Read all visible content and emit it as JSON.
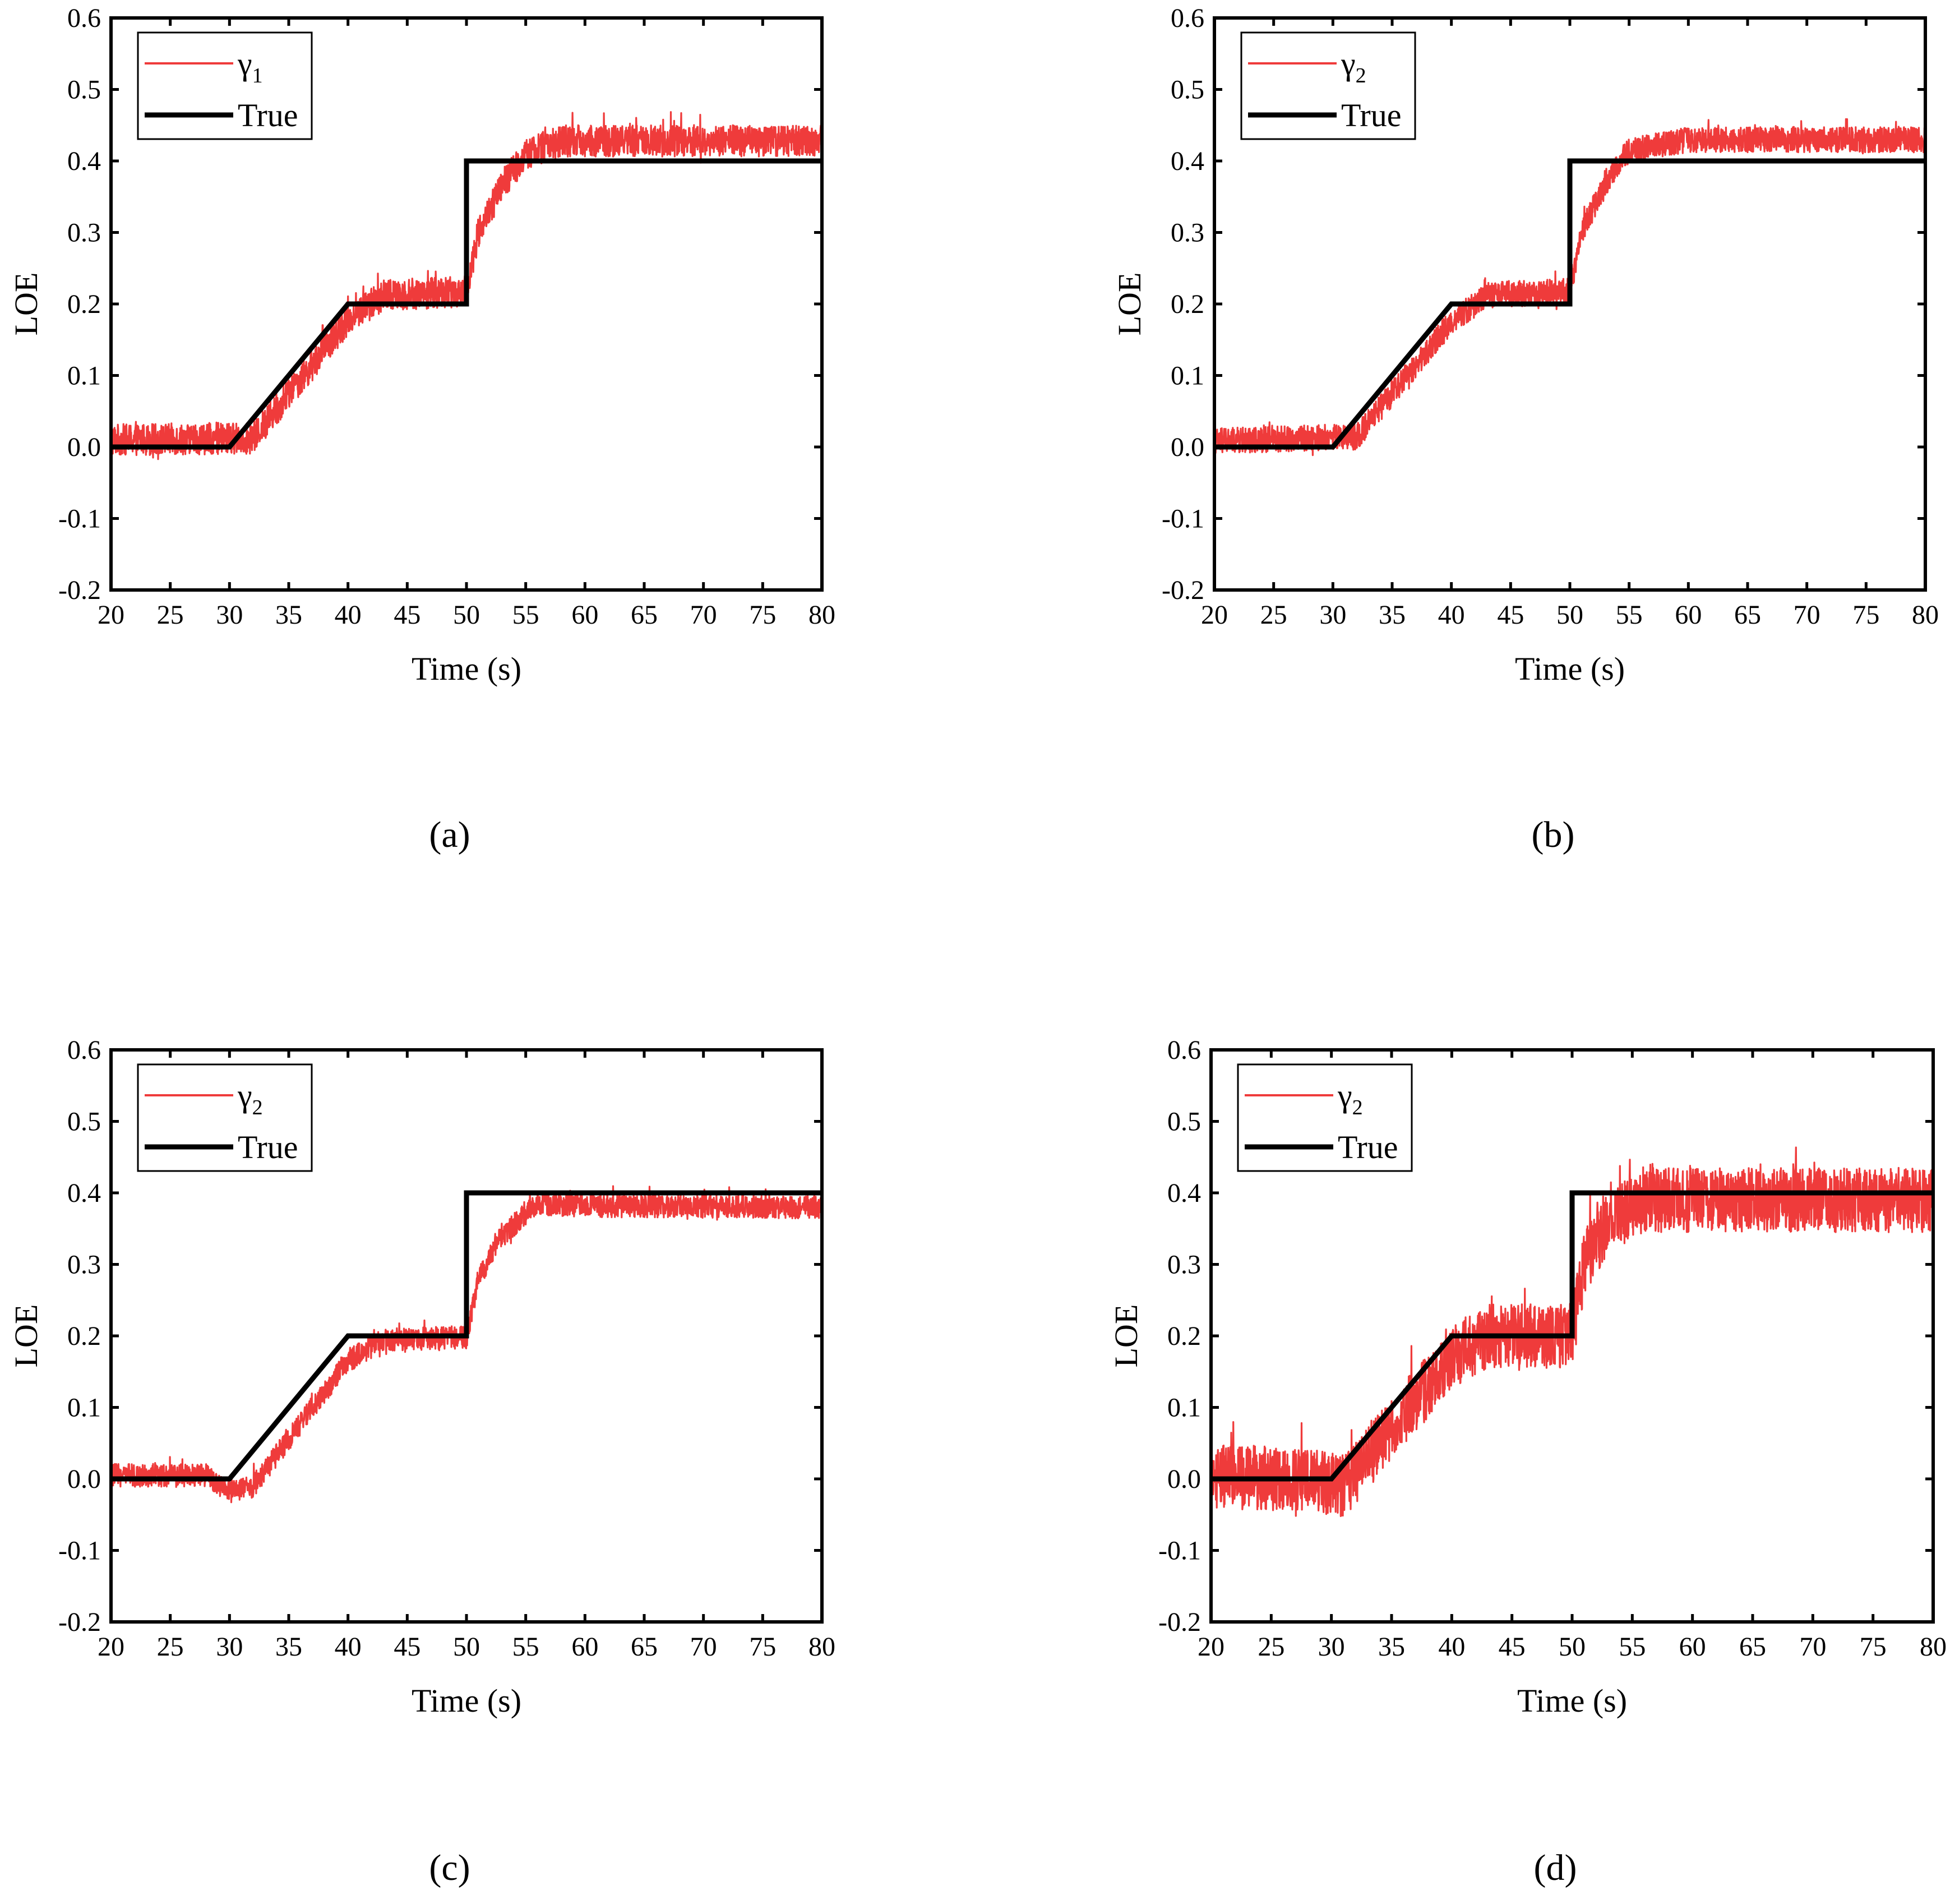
{
  "figure": {
    "panels": [
      "a",
      "b",
      "c",
      "d"
    ]
  },
  "colors": {
    "estimate": "#ef3b3b",
    "true": "#000000",
    "frame": "#000000"
  },
  "chart_data": [
    {
      "type": "line",
      "panel_label": "(a)",
      "xlabel": "Time (s)",
      "ylabel": "LOE",
      "xlim": [
        20,
        80
      ],
      "ylim": [
        -0.2,
        0.6
      ],
      "xticks": [
        20,
        25,
        30,
        35,
        40,
        45,
        50,
        55,
        60,
        65,
        70,
        75,
        80
      ],
      "yticks": [
        -0.2,
        -0.1,
        0.0,
        0.1,
        0.2,
        0.3,
        0.4,
        0.5,
        0.6
      ],
      "ytick_labels": [
        "-0.2",
        "-0.1",
        "0.0",
        "0.1",
        "0.2",
        "0.3",
        "0.4",
        "0.5",
        "0.6"
      ],
      "legend_position": "top-left",
      "series": [
        {
          "name": "γ1",
          "legend_symbol": "γ",
          "legend_subscript": "1",
          "color": "#ef3b3b",
          "noise_amplitude": 0.022,
          "x": [
            20,
            30,
            32,
            40,
            43,
            50,
            51,
            53,
            55,
            58,
            80
          ],
          "y": [
            0.01,
            0.012,
            0.012,
            0.178,
            0.212,
            0.218,
            0.3,
            0.365,
            0.41,
            0.428,
            0.428
          ]
        },
        {
          "name": "True",
          "color": "#000000",
          "x": [
            20,
            30,
            40,
            50,
            50,
            80
          ],
          "y": [
            0.0,
            0.0,
            0.2,
            0.2,
            0.4,
            0.4
          ]
        }
      ]
    },
    {
      "type": "line",
      "panel_label": "(b)",
      "xlabel": "Time (s)",
      "ylabel": "LOE",
      "xlim": [
        20,
        80
      ],
      "ylim": [
        -0.2,
        0.6
      ],
      "xticks": [
        20,
        25,
        30,
        35,
        40,
        45,
        50,
        55,
        60,
        65,
        70,
        75,
        80
      ],
      "yticks": [
        -0.2,
        -0.1,
        0.0,
        0.1,
        0.2,
        0.3,
        0.4,
        0.5,
        0.6
      ],
      "ytick_labels": [
        "-0.2",
        "-0.1",
        "0.0",
        "0.1",
        "0.2",
        "0.3",
        "0.4",
        "0.5",
        "0.6"
      ],
      "legend_position": "top-left",
      "series": [
        {
          "name": "γ2",
          "legend_symbol": "γ",
          "legend_subscript": "2",
          "color": "#ef3b3b",
          "noise_amplitude": 0.018,
          "x": [
            20,
            30,
            32,
            40,
            43,
            50,
            51,
            53,
            55,
            60,
            80
          ],
          "y": [
            0.008,
            0.014,
            0.014,
            0.175,
            0.212,
            0.218,
            0.3,
            0.37,
            0.415,
            0.43,
            0.43
          ]
        },
        {
          "name": "True",
          "color": "#000000",
          "x": [
            20,
            30,
            40,
            50,
            50,
            80
          ],
          "y": [
            0.0,
            0.0,
            0.2,
            0.2,
            0.4,
            0.4
          ]
        }
      ]
    },
    {
      "type": "line",
      "panel_label": "(c)",
      "xlabel": "Time (s)",
      "ylabel": "LOE",
      "xlim": [
        20,
        80
      ],
      "ylim": [
        -0.2,
        0.6
      ],
      "xticks": [
        20,
        25,
        30,
        35,
        40,
        45,
        50,
        55,
        60,
        65,
        70,
        75,
        80
      ],
      "yticks": [
        -0.2,
        -0.1,
        0.0,
        0.1,
        0.2,
        0.3,
        0.4,
        0.5,
        0.6
      ],
      "ytick_labels": [
        "-0.2",
        "-0.1",
        "0.0",
        "0.1",
        "0.2",
        "0.3",
        "0.4",
        "0.5",
        "0.6"
      ],
      "legend_position": "top-left",
      "series": [
        {
          "name": "γ2",
          "legend_symbol": "γ",
          "legend_subscript": "2",
          "color": "#ef3b3b",
          "noise_amplitude": 0.016,
          "x": [
            20,
            28,
            30,
            32,
            40,
            43,
            50,
            51,
            53,
            56,
            60,
            80
          ],
          "y": [
            0.005,
            0.005,
            -0.018,
            -0.01,
            0.165,
            0.195,
            0.198,
            0.28,
            0.34,
            0.385,
            0.382,
            0.38
          ]
        },
        {
          "name": "True",
          "color": "#000000",
          "x": [
            20,
            30,
            40,
            50,
            50,
            80
          ],
          "y": [
            0.0,
            0.0,
            0.2,
            0.2,
            0.4,
            0.4
          ]
        }
      ]
    },
    {
      "type": "line",
      "panel_label": "(d)",
      "xlabel": "Time (s)",
      "ylabel": "LOE",
      "xlim": [
        20,
        80
      ],
      "ylim": [
        -0.2,
        0.6
      ],
      "xticks": [
        20,
        25,
        30,
        35,
        40,
        45,
        50,
        55,
        60,
        65,
        70,
        75,
        80
      ],
      "yticks": [
        -0.2,
        -0.1,
        0.0,
        0.1,
        0.2,
        0.3,
        0.4,
        0.5,
        0.6
      ],
      "ytick_labels": [
        "-0.2",
        "-0.1",
        "0.0",
        "0.1",
        "0.2",
        "0.3",
        "0.4",
        "0.5",
        "0.6"
      ],
      "legend_position": "top-left",
      "series": [
        {
          "name": "γ2",
          "legend_symbol": "γ",
          "legend_subscript": "2",
          "color": "#ef3b3b",
          "noise_amplitude": 0.045,
          "x": [
            20,
            30,
            31,
            40,
            43,
            50,
            51,
            53,
            56,
            80
          ],
          "y": [
            0.005,
            -0.005,
            -0.01,
            0.17,
            0.2,
            0.2,
            0.3,
            0.36,
            0.39,
            0.39
          ]
        },
        {
          "name": "True",
          "color": "#000000",
          "x": [
            20,
            30,
            40,
            50,
            50,
            80
          ],
          "y": [
            0.0,
            0.0,
            0.2,
            0.2,
            0.4,
            0.4
          ]
        }
      ]
    }
  ]
}
